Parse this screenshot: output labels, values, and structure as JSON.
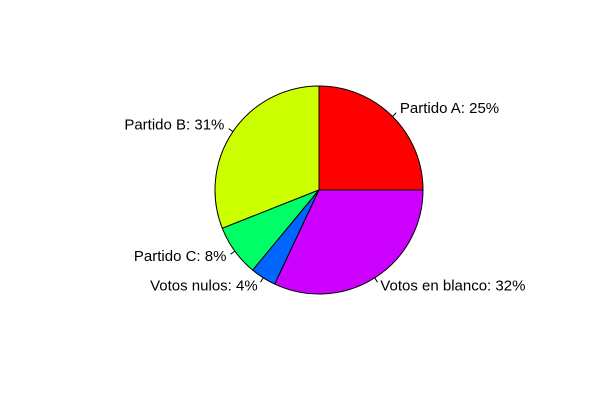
{
  "chart_data": {
    "type": "pie",
    "direction": "counterclockwise",
    "start": "east",
    "slices": [
      {
        "label": "Partido A: 25%",
        "value": 25,
        "color": "#FF0000"
      },
      {
        "label": "Partido B: 31%",
        "value": 31,
        "color": "#CCFF00"
      },
      {
        "label": "Partido C: 8%",
        "value": 8,
        "color": "#00FF66"
      },
      {
        "label": "Votos nulos: 4%",
        "value": 4,
        "color": "#0066FF"
      },
      {
        "label": "Votos en blanco: 32%",
        "value": 32,
        "color": "#CC00FF"
      }
    ]
  }
}
